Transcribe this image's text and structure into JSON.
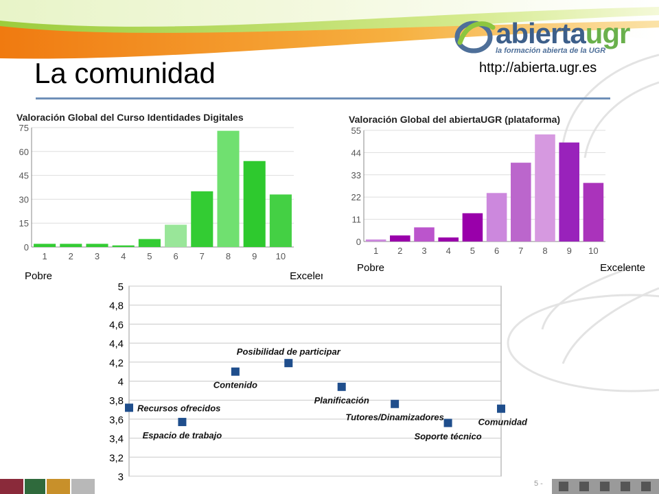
{
  "header": {
    "title": "La comunidad",
    "url": "http://abierta.ugr.es",
    "logo_word_a": "abierta",
    "logo_word_b": "ugr",
    "logo_tagline": "la formación abierta de la UGR",
    "page_number": "5 -"
  },
  "colors": {
    "green_bars": [
      "#33cc33",
      "#33cc33",
      "#33cc33",
      "#33cc33",
      "#33cc33",
      "#99e699",
      "#33cc33",
      "#70e070",
      "#2ec92e",
      "#44d044"
    ],
    "purple_bars": [
      "#cc88dd",
      "#9900aa",
      "#bb55cc",
      "#9900aa",
      "#9900aa",
      "#cc88dd",
      "#bb66cc",
      "#d699e0",
      "#9922bb",
      "#aa33bb"
    ],
    "scatter_marker": "#1f4e8c",
    "title_rule": "#6e8fb8"
  },
  "chart_data": [
    {
      "type": "bar",
      "title": "Valoración Global del Curso Identidades Digitales",
      "categories": [
        "1",
        "2",
        "3",
        "4",
        "5",
        "6",
        "7",
        "8",
        "9",
        "10"
      ],
      "values": [
        2,
        2,
        2,
        1,
        5,
        14,
        35,
        73,
        54,
        33
      ],
      "yticks": [
        0,
        15,
        30,
        45,
        60,
        75
      ],
      "ylim": [
        0,
        75
      ],
      "low_label": "Pobre",
      "high_label": "Excelente",
      "grid": true
    },
    {
      "type": "bar",
      "title": "Valoración Global del abiertaUGR (plataforma)",
      "categories": [
        "1",
        "2",
        "3",
        "4",
        "5",
        "6",
        "7",
        "8",
        "9",
        "10"
      ],
      "values": [
        1,
        3,
        7,
        2,
        14,
        24,
        39,
        53,
        49,
        29
      ],
      "yticks": [
        0,
        11,
        22,
        33,
        44,
        55
      ],
      "ylim": [
        0,
        55
      ],
      "low_label": "Pobre",
      "high_label": "Excelente",
      "grid": true
    },
    {
      "type": "scatter",
      "categories": [
        "Recursos ofrecidos",
        "Espacio de trabajo",
        "Contenido",
        "Posibilidad de participar",
        "Planificación",
        "Tutores/Dinamizadores",
        "Soporte técnico",
        "Comunidad"
      ],
      "values": [
        3.72,
        3.57,
        4.1,
        4.19,
        3.94,
        3.76,
        3.56,
        3.71
      ],
      "yticks": [
        "3",
        "3,2",
        "3,4",
        "3,6",
        "3,8",
        "4",
        "4,2",
        "4,4",
        "4,6",
        "4,8",
        "5"
      ],
      "ylim": [
        3,
        5
      ],
      "label_placement": [
        "right",
        "below",
        "below",
        "above",
        "below",
        "below",
        "below",
        "below"
      ],
      "grid": true
    }
  ]
}
